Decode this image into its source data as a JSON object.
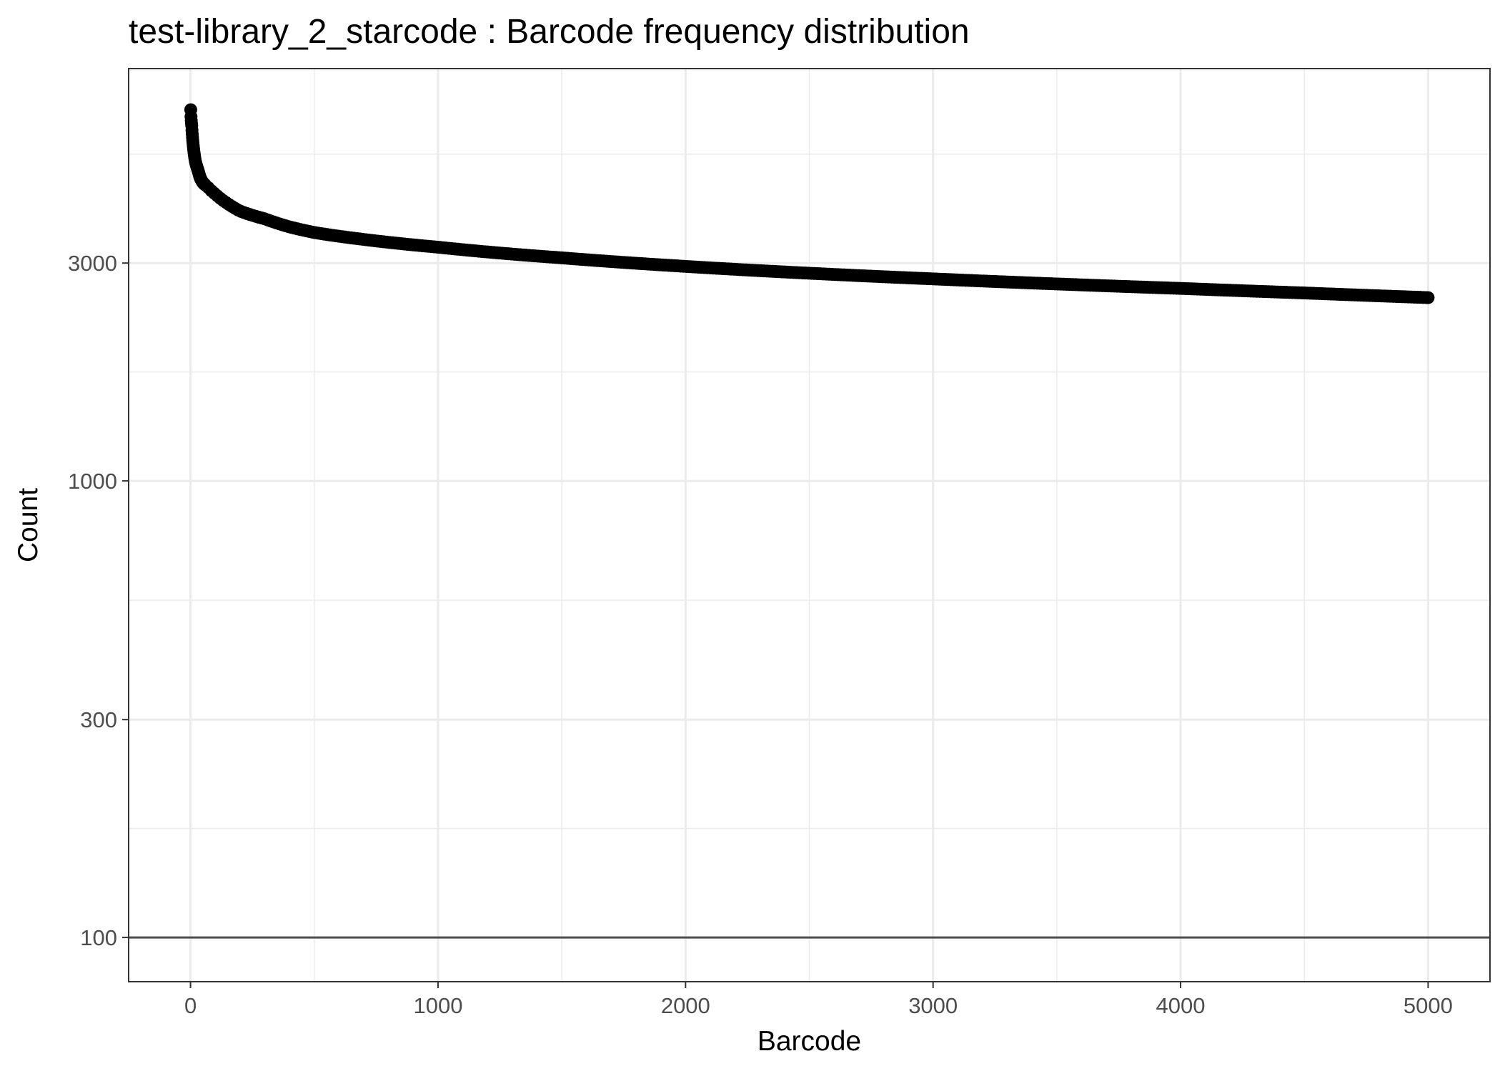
{
  "chart_data": {
    "type": "scatter",
    "title": "test-library_2_starcode : Barcode frequency distribution",
    "xlabel": "Barcode",
    "ylabel": "Count",
    "x_scale": "linear",
    "y_scale": "log10",
    "xlim": [
      -250,
      5250
    ],
    "ylim": [
      80,
      8000
    ],
    "x_ticks": [
      0,
      1000,
      2000,
      3000,
      4000,
      5000
    ],
    "y_ticks": [
      100,
      300,
      1000,
      3000
    ],
    "grid": true,
    "legend": "none",
    "reference_line": {
      "y": 100,
      "color": "#4d4d4d"
    },
    "point_color": "#000000",
    "series": [
      {
        "x": [
          1,
          5,
          10,
          15,
          20,
          30,
          40,
          50,
          70,
          100,
          150,
          200,
          300,
          400,
          500,
          700,
          1000,
          1500,
          2000,
          2500,
          3000,
          3500,
          4000,
          4500,
          5000
        ],
        "y": [
          6500,
          6000,
          5500,
          5200,
          5000,
          4800,
          4600,
          4500,
          4400,
          4250,
          4050,
          3900,
          3750,
          3600,
          3500,
          3380,
          3250,
          3080,
          2950,
          2850,
          2770,
          2700,
          2640,
          2580,
          2520
        ]
      }
    ]
  }
}
